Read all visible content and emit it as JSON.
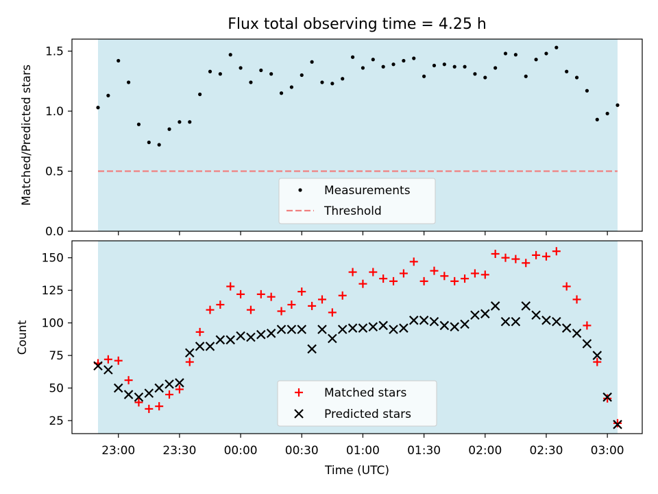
{
  "chart_data": [
    {
      "type": "scatter",
      "title": "Flux total observing time = 4.25 h",
      "xlabel": "",
      "ylabel": "Matched/Predicted stars",
      "ylim": [
        0,
        1.6
      ],
      "yticks": [
        "0.0",
        "0.5",
        "1.0",
        "1.5"
      ],
      "observing_window": [
        "22:50",
        "03:05"
      ],
      "legend": {
        "position": "bottom-center",
        "entries": [
          "Measurements",
          "Threshold"
        ]
      },
      "threshold": {
        "name": "Threshold",
        "value": 0.5,
        "color": "#f08080"
      },
      "series": [
        {
          "name": "Measurements",
          "color": "#000000",
          "x": [
            "22:50",
            "22:55",
            "23:00",
            "23:05",
            "23:10",
            "23:15",
            "23:20",
            "23:25",
            "23:30",
            "23:35",
            "23:40",
            "23:45",
            "23:50",
            "23:55",
            "00:00",
            "00:05",
            "00:10",
            "00:15",
            "00:20",
            "00:25",
            "00:30",
            "00:35",
            "00:40",
            "00:45",
            "00:50",
            "00:55",
            "01:00",
            "01:05",
            "01:10",
            "01:15",
            "01:20",
            "01:25",
            "01:30",
            "01:35",
            "01:40",
            "01:45",
            "01:50",
            "01:55",
            "02:00",
            "02:05",
            "02:10",
            "02:15",
            "02:20",
            "02:25",
            "02:30",
            "02:35",
            "02:40",
            "02:45",
            "02:50",
            "02:55",
            "03:00",
            "03:05"
          ],
          "values": [
            1.03,
            1.13,
            1.42,
            1.24,
            0.89,
            0.74,
            0.72,
            0.85,
            0.91,
            0.91,
            1.14,
            1.33,
            1.31,
            1.47,
            1.36,
            1.24,
            1.34,
            1.31,
            1.15,
            1.2,
            1.3,
            1.41,
            1.24,
            1.23,
            1.27,
            1.45,
            1.36,
            1.43,
            1.37,
            1.39,
            1.42,
            1.44,
            1.29,
            1.38,
            1.39,
            1.37,
            1.37,
            1.31,
            1.28,
            1.36,
            1.48,
            1.47,
            1.29,
            1.43,
            1.48,
            1.53,
            1.33,
            1.28,
            1.17,
            0.93,
            0.98,
            1.05
          ]
        }
      ]
    },
    {
      "type": "scatter",
      "title": "",
      "xlabel": "Time (UTC)",
      "ylabel": "Count",
      "ylim": [
        15,
        163
      ],
      "yticks": [
        "25",
        "50",
        "75",
        "100",
        "125",
        "150"
      ],
      "xticks": [
        "23:00",
        "23:30",
        "00:00",
        "00:30",
        "01:00",
        "01:30",
        "02:00",
        "02:30",
        "03:00"
      ],
      "legend": {
        "position": "bottom-center",
        "entries": [
          "Matched stars",
          "Predicted stars"
        ]
      },
      "series": [
        {
          "name": "Matched stars",
          "color": "#ff0000",
          "marker": "+",
          "x": [
            "22:50",
            "22:55",
            "23:00",
            "23:05",
            "23:10",
            "23:15",
            "23:20",
            "23:25",
            "23:30",
            "23:35",
            "23:40",
            "23:45",
            "23:50",
            "23:55",
            "00:00",
            "00:05",
            "00:10",
            "00:15",
            "00:20",
            "00:25",
            "00:30",
            "00:35",
            "00:40",
            "00:45",
            "00:50",
            "00:55",
            "01:00",
            "01:05",
            "01:10",
            "01:15",
            "01:20",
            "01:25",
            "01:30",
            "01:35",
            "01:40",
            "01:45",
            "01:50",
            "01:55",
            "02:00",
            "02:05",
            "02:10",
            "02:15",
            "02:20",
            "02:25",
            "02:30",
            "02:35",
            "02:40",
            "02:45",
            "02:50",
            "02:55",
            "03:00",
            "03:05"
          ],
          "values": [
            69,
            72,
            71,
            56,
            39,
            34,
            36,
            45,
            49,
            70,
            93,
            110,
            114,
            128,
            122,
            110,
            122,
            120,
            109,
            114,
            124,
            113,
            118,
            108,
            121,
            139,
            130,
            139,
            134,
            132,
            138,
            147,
            132,
            140,
            136,
            132,
            134,
            138,
            137,
            153,
            150,
            149,
            146,
            152,
            151,
            155,
            128,
            118,
            98,
            70,
            42,
            23
          ]
        },
        {
          "name": "Predicted stars",
          "color": "#000000",
          "marker": "x",
          "x": [
            "22:50",
            "22:55",
            "23:00",
            "23:05",
            "23:10",
            "23:15",
            "23:20",
            "23:25",
            "23:30",
            "23:35",
            "23:40",
            "23:45",
            "23:50",
            "23:55",
            "00:00",
            "00:05",
            "00:10",
            "00:15",
            "00:20",
            "00:25",
            "00:30",
            "00:35",
            "00:40",
            "00:45",
            "00:50",
            "00:55",
            "01:00",
            "01:05",
            "01:10",
            "01:15",
            "01:20",
            "01:25",
            "01:30",
            "01:35",
            "01:40",
            "01:45",
            "01:50",
            "01:55",
            "02:00",
            "02:05",
            "02:10",
            "02:15",
            "02:20",
            "02:25",
            "02:30",
            "02:35",
            "02:40",
            "02:45",
            "02:50",
            "02:55",
            "03:00",
            "03:05"
          ],
          "values": [
            67,
            64,
            50,
            45,
            43,
            46,
            50,
            53,
            54,
            77,
            82,
            82,
            87,
            87,
            90,
            89,
            91,
            92,
            95,
            95,
            95,
            80,
            95,
            88,
            95,
            96,
            96,
            97,
            98,
            95,
            96,
            102,
            102,
            101,
            98,
            97,
            99,
            106,
            107,
            113,
            101,
            101,
            113,
            106,
            102,
            101,
            96,
            92,
            84,
            75,
            43,
            22
          ]
        }
      ]
    }
  ]
}
